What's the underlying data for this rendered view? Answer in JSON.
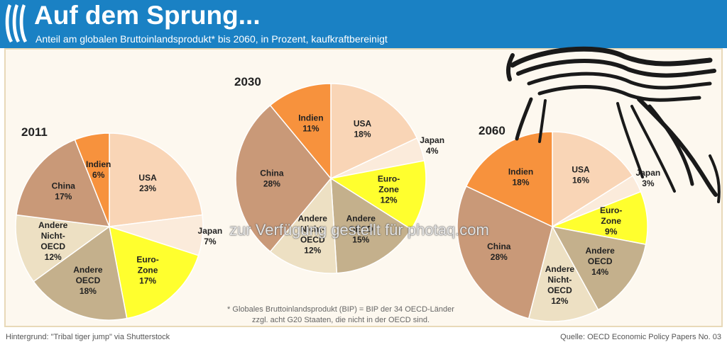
{
  "header": {
    "title": "Auf dem Sprung...",
    "subtitle": "Anteil am globalen Bruttoinlandsprodukt* bis 2060, in Prozent, kaufkraftbereinigt"
  },
  "colors": {
    "header_bg": "#1a81c4",
    "panel_bg": "#fdf8ef",
    "usa": "#f9d5b6",
    "japan": "#fbebdb",
    "euro_zone": "#ffff2e",
    "andere_oecd": "#c4b08c",
    "andere_nicht_oecd": "#ede0c3",
    "china": "#c99978",
    "indien": "#f7923d"
  },
  "chart_data": [
    {
      "type": "pie",
      "title": "2011",
      "slices": [
        {
          "label": "USA",
          "value": 23,
          "value_label": "23%"
        },
        {
          "label": "Japan",
          "value": 7,
          "value_label": "7%"
        },
        {
          "label": "Euro-Zone",
          "value": 17,
          "value_label": "17%"
        },
        {
          "label": "Andere OECD",
          "value": 18,
          "value_label": "18%"
        },
        {
          "label": "Andere Nicht-OECD",
          "value": 12,
          "value_label": "12%"
        },
        {
          "label": "China",
          "value": 17,
          "value_label": "17%"
        },
        {
          "label": "Indien",
          "value": 6,
          "value_label": "6%"
        }
      ]
    },
    {
      "type": "pie",
      "title": "2030",
      "slices": [
        {
          "label": "USA",
          "value": 18,
          "value_label": "18%"
        },
        {
          "label": "Japan",
          "value": 4,
          "value_label": "4%"
        },
        {
          "label": "Euro-Zone",
          "value": 12,
          "value_label": "12%"
        },
        {
          "label": "Andere OECD",
          "value": 15,
          "value_label": "15%"
        },
        {
          "label": "Andere Nicht-OECD",
          "value": 12,
          "value_label": "12%"
        },
        {
          "label": "China",
          "value": 28,
          "value_label": "28%"
        },
        {
          "label": "Indien",
          "value": 11,
          "value_label": "11%"
        }
      ]
    },
    {
      "type": "pie",
      "title": "2060",
      "slices": [
        {
          "label": "USA",
          "value": 16,
          "value_label": "16%"
        },
        {
          "label": "Japan",
          "value": 3,
          "value_label": "3%"
        },
        {
          "label": "Euro-Zone",
          "value": 9,
          "value_label": "9%"
        },
        {
          "label": "Andere OECD",
          "value": 14,
          "value_label": "14%"
        },
        {
          "label": "Andere Nicht-OECD",
          "value": 12,
          "value_label": "12%"
        },
        {
          "label": "China",
          "value": 28,
          "value_label": "28%"
        },
        {
          "label": "Indien",
          "value": 18,
          "value_label": "18%"
        }
      ]
    }
  ],
  "footnote": {
    "line1": "* Globales Bruttoinlandsprodukt (BIP) = BIP der 34 OECD-Länder",
    "line2": "zzgl. acht G20 Staaten, die nicht in der OECD sind."
  },
  "footer": {
    "left": "Hintergrund: \"Tribal tiger jump\" via Shutterstock",
    "right": "Quelle: OECD Economic Policy Papers No. 03"
  },
  "watermark": "zur Verfügung gestellt für photaq.com",
  "icons": {
    "logo": "oecd-logo-icon",
    "tiger": "tiger-icon"
  }
}
